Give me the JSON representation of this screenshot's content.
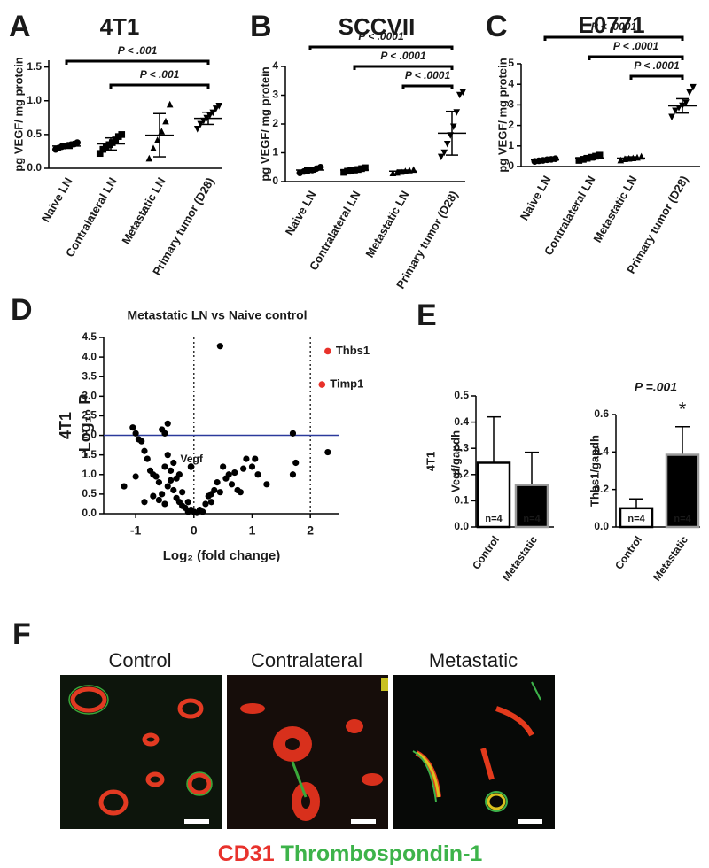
{
  "chart_data": [
    {
      "type": "dot",
      "label": "A",
      "title": "4T1",
      "ylabel": "pg VEGF/ mg protein",
      "categories": [
        "Naive LN",
        "Contralateral LN",
        "Metastatic LN",
        "Primary tumor (D28)"
      ],
      "markers": [
        "circle",
        "square",
        "triangle",
        "triangle-down"
      ],
      "points": [
        [
          0.28,
          0.3,
          0.32,
          0.33,
          0.34,
          0.35,
          0.36,
          0.38
        ],
        [
          0.22,
          0.28,
          0.32,
          0.35,
          0.38,
          0.42,
          0.47,
          0.5
        ],
        [
          0.15,
          0.3,
          0.42,
          0.55,
          0.7,
          0.95
        ],
        [
          0.58,
          0.65,
          0.7,
          0.74,
          0.78,
          0.82,
          0.88,
          0.92
        ]
      ],
      "means": [
        0.33,
        0.36,
        0.49,
        0.74
      ],
      "sds": [
        0.035,
        0.09,
        0.32,
        0.09
      ],
      "ylim": [
        0,
        1.6
      ],
      "yticks": [
        {
          "value": 0,
          "label": "0.0"
        },
        0.5,
        {
          "value": 1,
          "label": "1.0"
        },
        1.5
      ],
      "comparisons": [
        {
          "from": 0,
          "to": 3,
          "label": "P < .001"
        },
        {
          "from": 1,
          "to": 3,
          "label": "P < .001"
        }
      ]
    },
    {
      "type": "dot",
      "label": "B",
      "title": "SCCVII",
      "ylabel": "pg VEGF/ mg protein",
      "categories": [
        "Naive LN",
        "Contralateral LN",
        "Metastatic LN",
        "Primary tumor (D28)"
      ],
      "markers": [
        "circle",
        "square",
        "triangle",
        "triangle-down"
      ],
      "points": [
        [
          0.3,
          0.35,
          0.38,
          0.4,
          0.45,
          0.5
        ],
        [
          0.32,
          0.36,
          0.38,
          0.4,
          0.42,
          0.45,
          0.48
        ],
        [
          0.3,
          0.32,
          0.35,
          0.37,
          0.4,
          0.42
        ],
        [
          0.85,
          1.0,
          1.3,
          1.6,
          1.9,
          2.4,
          3.0,
          3.1
        ]
      ],
      "means": [
        0.4,
        0.4,
        0.36,
        1.68
      ],
      "sds": [
        0.07,
        0.05,
        0.04,
        0.76
      ],
      "ylim": [
        0,
        4
      ],
      "yticks": [
        0,
        1,
        2,
        3,
        4
      ],
      "comparisons": [
        {
          "from": 0,
          "to": 3,
          "label": "P < .0001"
        },
        {
          "from": 1,
          "to": 3,
          "label": "P < .0001"
        },
        {
          "from": 2,
          "to": 3,
          "label": "P < .0001"
        }
      ]
    },
    {
      "type": "dot",
      "label": "C",
      "title": "E0771",
      "ylabel": "pg VEGF/ mg protein",
      "categories": [
        "Naive LN",
        "Contralateral LN",
        "Metastatic LN",
        "Primary tumor (D28)"
      ],
      "markers": [
        "circle",
        "square",
        "triangle",
        "triangle-down"
      ],
      "points": [
        [
          0.25,
          0.28,
          0.3,
          0.33,
          0.35,
          0.38
        ],
        [
          0.3,
          0.35,
          0.4,
          0.45,
          0.5,
          0.55
        ],
        [
          0.32,
          0.38,
          0.4,
          0.42,
          0.45,
          0.5
        ],
        [
          2.4,
          2.7,
          2.85,
          2.95,
          3.1,
          3.6,
          3.85
        ]
      ],
      "means": [
        0.32,
        0.42,
        0.41,
        2.95
      ],
      "sds": [
        0.05,
        0.09,
        0.06,
        0.35
      ],
      "ylim": [
        0,
        5
      ],
      "yticks": [
        0,
        1,
        2,
        3,
        4,
        5
      ],
      "comparisons": [
        {
          "from": 0,
          "to": 3,
          "label": "P < .0001"
        },
        {
          "from": 1,
          "to": 3,
          "label": "P < .0001"
        },
        {
          "from": 2,
          "to": 3,
          "label": "P < .0001"
        }
      ]
    },
    {
      "type": "scatter",
      "label": "D",
      "title": "Metastatic LN vs Naive control",
      "side_label": "4T1",
      "ylabel": "-Log₁₀ P",
      "xlabel": "Log₂ (fold change)",
      "color": "#000000",
      "x": [
        -1.2,
        -1.05,
        -1.0,
        -0.95,
        -0.9,
        -0.85,
        -0.8,
        -0.75,
        -0.7,
        -0.65,
        -0.6,
        -0.55,
        -0.5,
        -0.5,
        -0.45,
        -0.45,
        -0.4,
        -0.4,
        -0.35,
        -0.35,
        -0.3,
        -0.3,
        -0.25,
        -0.25,
        -0.2,
        -0.2,
        -0.15,
        -0.1,
        -0.1,
        -0.05,
        0.0,
        0.05,
        0.1,
        0.15,
        0.2,
        0.25,
        0.3,
        0.3,
        0.35,
        0.4,
        0.45,
        0.45,
        0.5,
        0.55,
        0.6,
        0.65,
        0.7,
        0.75,
        0.8,
        0.85,
        0.9,
        1.0,
        1.05,
        1.1,
        1.25,
        1.7,
        1.75,
        1.7,
        2.3,
        -0.85,
        -0.7,
        -0.6,
        -0.55,
        -0.5,
        -0.45,
        -1.0
      ],
      "y": [
        0.7,
        2.2,
        2.05,
        1.9,
        1.85,
        1.6,
        1.4,
        1.1,
        1.0,
        0.95,
        0.8,
        2.15,
        2.05,
        1.2,
        2.3,
        1.5,
        1.1,
        0.85,
        1.3,
        0.6,
        0.9,
        0.4,
        1.0,
        0.3,
        0.55,
        0.2,
        0.15,
        0.3,
        0.05,
        0.1,
        0.05,
        0.02,
        0.1,
        0.05,
        0.25,
        0.45,
        0.5,
        0.3,
        0.6,
        0.8,
        4.28,
        0.55,
        1.2,
        0.9,
        1.0,
        0.75,
        1.05,
        0.6,
        0.55,
        1.15,
        1.4,
        1.2,
        1.4,
        1.0,
        0.75,
        2.05,
        1.3,
        1.0,
        1.57,
        0.3,
        0.45,
        0.35,
        0.5,
        0.25,
        0.7,
        0.95
      ],
      "highlights": [
        {
          "label": "Thbs1",
          "x": 2.3,
          "y": 4.15,
          "color": "#e8312a"
        },
        {
          "label": "Timp1",
          "x": 2.2,
          "y": 3.3,
          "color": "#e8312a"
        },
        {
          "label": "Vegf",
          "x": -0.05,
          "y": 1.2,
          "color": "#000000"
        }
      ],
      "hlines": [
        {
          "y": 2,
          "color": "#2b3a9c"
        }
      ],
      "vlines": [
        0,
        2
      ],
      "xlim": [
        -1.55,
        2.5
      ],
      "xticks": [
        -1,
        0,
        1,
        2
      ],
      "ylim": [
        0,
        4.5
      ],
      "yticks": [
        {
          "value": 0,
          "label": "0.0"
        },
        0.5,
        {
          "value": 1,
          "label": "1.0"
        },
        1.5,
        {
          "value": 2,
          "label": "2.0"
        },
        2.5,
        {
          "value": 3,
          "label": "3.0"
        },
        3.5,
        {
          "value": 4,
          "label": "4.0"
        },
        4.5
      ]
    },
    {
      "type": "bar",
      "label": "E",
      "side_label": "4T1",
      "ylabel": "Vegf/gapdh",
      "categories": [
        "Control",
        "Metastatic"
      ],
      "values": [
        0.245,
        0.16
      ],
      "errors": [
        0.175,
        0.125
      ],
      "colors": [
        "#ffffff",
        "#000000"
      ],
      "edgecolors": [
        "#000000",
        "#9a9a9a"
      ],
      "n_labels": [
        "n=4",
        "n=4"
      ],
      "ylim": [
        0,
        0.5
      ],
      "yticks": [
        {
          "value": 0,
          "label": "0.0"
        },
        0.1,
        0.2,
        0.3,
        0.4,
        0.5
      ]
    },
    {
      "type": "bar",
      "title": "P =.001",
      "ylabel": "Thbs1/gapdh",
      "categories": [
        "Control",
        "Metastatic"
      ],
      "values": [
        0.1,
        0.385
      ],
      "errors": [
        0.05,
        0.15
      ],
      "colors": [
        "#ffffff",
        "#000000"
      ],
      "edgecolors": [
        "#000000",
        "#9a9a9a"
      ],
      "n_labels": [
        "n=4",
        "n=4"
      ],
      "annotations": [
        {
          "category": 1,
          "text": "*"
        }
      ],
      "ylim": [
        0,
        0.6
      ],
      "yticks": [
        {
          "value": 0,
          "label": "0.0"
        },
        0.2,
        0.4,
        0.6
      ]
    }
  ],
  "figure_f": {
    "label": "F",
    "titles": [
      "Control",
      "Contralateral",
      "Metastatic"
    ],
    "stains": [
      {
        "name": "CD31",
        "color": "#e8322c"
      },
      {
        "name": "Thrombospondin-1",
        "color": "#3db34a"
      }
    ]
  }
}
